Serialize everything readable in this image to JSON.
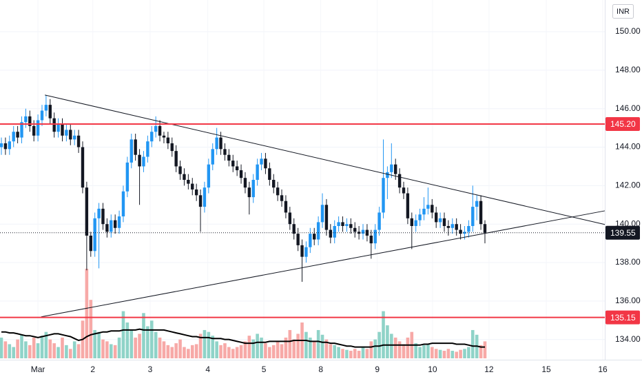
{
  "chart_data": {
    "type": "candlestick",
    "currency": "INR",
    "xlim": [
      -0.34,
      148.5
    ],
    "ylim": [
      132.95,
      151.65
    ],
    "xticks": [
      {
        "value": 9,
        "label": "Mar"
      },
      {
        "value": 22.5,
        "label": "2"
      },
      {
        "value": 36.6,
        "label": "3"
      },
      {
        "value": 50.8,
        "label": "4"
      },
      {
        "value": 64.6,
        "label": "5"
      },
      {
        "value": 78.6,
        "label": "8"
      },
      {
        "value": 92.5,
        "label": "9"
      },
      {
        "value": 106.1,
        "label": "10"
      },
      {
        "value": 120,
        "label": "12"
      },
      {
        "value": 134.1,
        "label": "15"
      },
      {
        "value": 148,
        "label": "16"
      }
    ],
    "yticks": [
      {
        "value": 134,
        "label": "134.00"
      },
      {
        "value": 136,
        "label": "136.00"
      },
      {
        "value": 138,
        "label": "138.00"
      },
      {
        "value": 140,
        "label": "140.00"
      },
      {
        "value": 142,
        "label": "142.00"
      },
      {
        "value": 144,
        "label": "144.00"
      },
      {
        "value": 146,
        "label": "146.00"
      },
      {
        "value": 148,
        "label": "148.00"
      },
      {
        "value": 150,
        "label": "150.00"
      }
    ],
    "grid": true,
    "up_color": "#2196f3",
    "down_color": "#131722",
    "volume_up_color": "#8fd3c8",
    "volume_down_color": "#f7a9a7",
    "volume_ma_color": "#000000",
    "ohlc": [
      [
        144.0,
        144.5,
        143.6,
        144.2
      ],
      [
        144.2,
        144.5,
        143.6,
        143.9
      ],
      [
        143.9,
        144.6,
        143.6,
        144.3
      ],
      [
        144.3,
        145.1,
        144.0,
        144.8
      ],
      [
        144.8,
        145.1,
        144.2,
        144.5
      ],
      [
        144.5,
        145.6,
        144.2,
        145.3
      ],
      [
        145.3,
        146.0,
        145.0,
        145.6
      ],
      [
        145.6,
        145.9,
        144.8,
        145.1
      ],
      [
        145.1,
        145.4,
        144.3,
        144.6
      ],
      [
        144.6,
        145.7,
        144.3,
        145.4
      ],
      [
        145.4,
        146.2,
        145.1,
        145.9
      ],
      [
        145.9,
        146.7,
        145.6,
        146.2
      ],
      [
        146.2,
        146.5,
        145.2,
        145.5
      ],
      [
        145.5,
        145.8,
        144.5,
        144.8
      ],
      [
        144.8,
        145.5,
        144.5,
        145.2
      ],
      [
        145.2,
        145.5,
        144.3,
        144.6
      ],
      [
        144.6,
        145.2,
        144.3,
        144.9
      ],
      [
        144.9,
        145.2,
        144.1,
        144.4
      ],
      [
        144.4,
        144.9,
        144.1,
        144.6
      ],
      [
        144.6,
        144.9,
        143.7,
        144.0
      ],
      [
        144.0,
        144.3,
        141.6,
        141.9
      ],
      [
        141.9,
        142.2,
        137.6,
        139.4
      ],
      [
        139.4,
        139.6,
        138.3,
        138.6
      ],
      [
        138.6,
        140.6,
        138.3,
        140.3
      ],
      [
        140.3,
        141.1,
        137.7,
        140.8
      ],
      [
        140.8,
        141.1,
        139.7,
        140.0
      ],
      [
        140.0,
        140.3,
        139.3,
        139.6
      ],
      [
        139.6,
        140.5,
        139.3,
        140.2
      ],
      [
        140.2,
        140.5,
        139.5,
        139.8
      ],
      [
        139.8,
        140.7,
        139.5,
        140.4
      ],
      [
        140.4,
        142.0,
        140.1,
        141.7
      ],
      [
        141.7,
        143.5,
        141.4,
        143.2
      ],
      [
        143.2,
        144.7,
        142.9,
        144.4
      ],
      [
        144.4,
        144.7,
        143.3,
        143.6
      ],
      [
        143.6,
        143.9,
        141.0,
        143.0
      ],
      [
        143.0,
        143.8,
        142.7,
        143.5
      ],
      [
        143.5,
        144.6,
        143.2,
        144.3
      ],
      [
        144.3,
        145.1,
        144.0,
        144.8
      ],
      [
        144.8,
        145.6,
        144.5,
        145.1
      ],
      [
        145.1,
        145.4,
        144.3,
        144.6
      ],
      [
        144.6,
        144.8,
        144.2,
        144.5
      ],
      [
        144.5,
        144.8,
        143.9,
        144.2
      ],
      [
        144.2,
        144.5,
        143.5,
        143.8
      ],
      [
        143.8,
        144.1,
        142.7,
        143.0
      ],
      [
        143.0,
        143.3,
        142.3,
        142.6
      ],
      [
        142.6,
        142.9,
        142.0,
        142.3
      ],
      [
        142.3,
        142.6,
        141.8,
        142.1
      ],
      [
        142.1,
        142.4,
        141.5,
        141.8
      ],
      [
        141.8,
        142.1,
        141.2,
        141.5
      ],
      [
        141.5,
        141.8,
        139.6,
        140.9
      ],
      [
        140.9,
        142.2,
        140.6,
        141.9
      ],
      [
        141.9,
        143.4,
        141.6,
        143.1
      ],
      [
        143.1,
        144.2,
        142.8,
        143.9
      ],
      [
        143.9,
        145.0,
        143.6,
        144.5
      ],
      [
        144.5,
        144.8,
        143.6,
        143.9
      ],
      [
        143.9,
        144.2,
        143.3,
        143.6
      ],
      [
        143.6,
        143.9,
        143.0,
        143.3
      ],
      [
        143.3,
        143.6,
        142.7,
        143.0
      ],
      [
        143.0,
        143.3,
        142.5,
        142.8
      ],
      [
        142.8,
        143.1,
        142.1,
        142.4
      ],
      [
        142.4,
        142.7,
        141.6,
        141.9
      ],
      [
        141.9,
        142.2,
        140.5,
        141.4
      ],
      [
        141.4,
        142.6,
        141.1,
        142.3
      ],
      [
        142.3,
        143.4,
        142.0,
        143.1
      ],
      [
        143.1,
        143.7,
        142.8,
        143.4
      ],
      [
        143.4,
        143.7,
        142.6,
        142.9
      ],
      [
        142.9,
        143.2,
        142.0,
        142.3
      ],
      [
        142.3,
        142.6,
        141.6,
        141.9
      ],
      [
        141.9,
        142.2,
        141.2,
        141.5
      ],
      [
        141.5,
        141.8,
        140.9,
        141.2
      ],
      [
        141.2,
        141.5,
        140.3,
        140.6
      ],
      [
        140.6,
        140.9,
        139.7,
        140.0
      ],
      [
        140.0,
        140.3,
        139.2,
        139.5
      ],
      [
        139.5,
        139.8,
        138.6,
        138.9
      ],
      [
        138.9,
        139.2,
        137.0,
        138.3
      ],
      [
        138.3,
        139.1,
        138.0,
        138.8
      ],
      [
        138.8,
        139.8,
        138.5,
        139.5
      ],
      [
        139.5,
        139.8,
        138.9,
        139.2
      ],
      [
        139.2,
        140.4,
        138.9,
        140.1
      ],
      [
        140.1,
        141.6,
        139.8,
        141.0
      ],
      [
        141.0,
        141.3,
        139.4,
        139.7
      ],
      [
        139.7,
        140.0,
        139.0,
        139.3
      ],
      [
        139.3,
        140.2,
        139.0,
        139.9
      ],
      [
        139.9,
        140.4,
        139.6,
        140.1
      ],
      [
        140.1,
        140.4,
        139.6,
        139.9
      ],
      [
        139.9,
        140.3,
        139.6,
        140.0
      ],
      [
        140.0,
        140.3,
        139.5,
        139.8
      ],
      [
        139.8,
        140.1,
        139.3,
        139.6
      ],
      [
        139.6,
        139.9,
        139.2,
        139.5
      ],
      [
        139.5,
        140.0,
        139.2,
        139.7
      ],
      [
        139.7,
        140.0,
        139.1,
        139.4
      ],
      [
        139.4,
        139.7,
        138.2,
        139.0
      ],
      [
        139.0,
        140.0,
        138.7,
        139.7
      ],
      [
        139.7,
        140.9,
        139.4,
        140.6
      ],
      [
        140.6,
        144.4,
        140.3,
        142.4
      ],
      [
        142.4,
        143.0,
        141.3,
        142.7
      ],
      [
        142.7,
        144.2,
        142.4,
        143.1
      ],
      [
        143.1,
        143.4,
        142.3,
        142.6
      ],
      [
        142.6,
        142.9,
        141.6,
        141.9
      ],
      [
        141.9,
        142.2,
        141.3,
        141.6
      ],
      [
        141.6,
        141.9,
        140.0,
        140.3
      ],
      [
        140.3,
        140.6,
        138.7,
        139.9
      ],
      [
        139.9,
        140.5,
        139.6,
        140.2
      ],
      [
        140.2,
        140.8,
        139.9,
        140.5
      ],
      [
        140.5,
        141.4,
        140.2,
        140.8
      ],
      [
        140.8,
        141.9,
        140.5,
        141.0
      ],
      [
        141.0,
        141.3,
        140.3,
        140.6
      ],
      [
        140.6,
        140.9,
        139.8,
        140.1
      ],
      [
        140.1,
        140.6,
        139.8,
        140.3
      ],
      [
        140.3,
        140.6,
        139.6,
        139.9
      ],
      [
        139.9,
        140.2,
        139.4,
        139.8
      ],
      [
        139.8,
        140.3,
        139.5,
        140.0
      ],
      [
        140.0,
        140.3,
        139.4,
        139.7
      ],
      [
        139.7,
        140.0,
        139.2,
        139.5
      ],
      [
        139.5,
        139.9,
        139.2,
        139.6
      ],
      [
        139.6,
        140.2,
        139.3,
        139.9
      ],
      [
        139.9,
        142.0,
        139.6,
        140.9
      ],
      [
        140.9,
        141.5,
        140.2,
        141.2
      ],
      [
        141.2,
        141.5,
        139.7,
        140.0
      ],
      [
        140.0,
        140.2,
        139.0,
        139.55
      ]
    ],
    "volume": [
      22,
      18,
      15,
      12,
      20,
      25,
      18,
      14,
      22,
      16,
      24,
      28,
      20,
      16,
      12,
      22,
      14,
      10,
      18,
      15,
      40,
      95,
      62,
      30,
      28,
      20,
      18,
      15,
      14,
      22,
      50,
      38,
      30,
      22,
      26,
      48,
      34,
      40,
      28,
      22,
      18,
      14,
      12,
      16,
      20,
      12,
      10,
      14,
      15,
      26,
      30,
      28,
      24,
      18,
      14,
      16,
      12,
      10,
      12,
      14,
      18,
      24,
      20,
      26,
      22,
      16,
      12,
      14,
      18,
      15,
      22,
      30,
      20,
      26,
      38,
      28,
      22,
      18,
      30,
      25,
      20,
      15,
      14,
      12,
      10,
      9,
      8,
      10,
      8,
      12,
      10,
      18,
      20,
      28,
      50,
      35,
      26,
      22,
      18,
      15,
      22,
      28,
      16,
      12,
      14,
      15,
      12,
      10,
      9,
      8,
      10,
      8,
      7,
      9,
      10,
      12,
      30,
      25,
      14,
      18
    ],
    "volume_ma": [
      28,
      28,
      27,
      27,
      26,
      25,
      24,
      24,
      23,
      22,
      23,
      24,
      25,
      26,
      26,
      25,
      24,
      23,
      21,
      19,
      20,
      23,
      25,
      26,
      27,
      28,
      28,
      29,
      29,
      29,
      30,
      30,
      30,
      30,
      31,
      30,
      30,
      30,
      30,
      30,
      30,
      29,
      28,
      27,
      26,
      25,
      24,
      23,
      23,
      22,
      22,
      22,
      21,
      21,
      21,
      20,
      20,
      19,
      18,
      17,
      16,
      16,
      16,
      17,
      17,
      17,
      18,
      18,
      18,
      18,
      18,
      18,
      19,
      19,
      19,
      19,
      18,
      18,
      18,
      17,
      17,
      16,
      16,
      15,
      14,
      13,
      13,
      12,
      12,
      12,
      12,
      12,
      13,
      13,
      14,
      14,
      14,
      14,
      14,
      14,
      14,
      14,
      14,
      14,
      15,
      15,
      16,
      16,
      16,
      16,
      16,
      16,
      15,
      15,
      15,
      14,
      13,
      13,
      12,
      12
    ],
    "trend_lines": [
      {
        "x": [
          10.7,
          148.5
        ],
        "y": [
          146.71,
          139.98
        ]
      },
      {
        "x": [
          9.8,
          148.5
        ],
        "y": [
          135.18,
          140.69
        ]
      }
    ],
    "levels": [
      {
        "value": 145.2,
        "label": "145.20",
        "color": "#f23645"
      },
      {
        "value": 135.15,
        "label": "135.15",
        "color": "#f23645"
      }
    ],
    "last_price": {
      "value": 139.55,
      "label": "139.55",
      "color": "#131722"
    }
  }
}
